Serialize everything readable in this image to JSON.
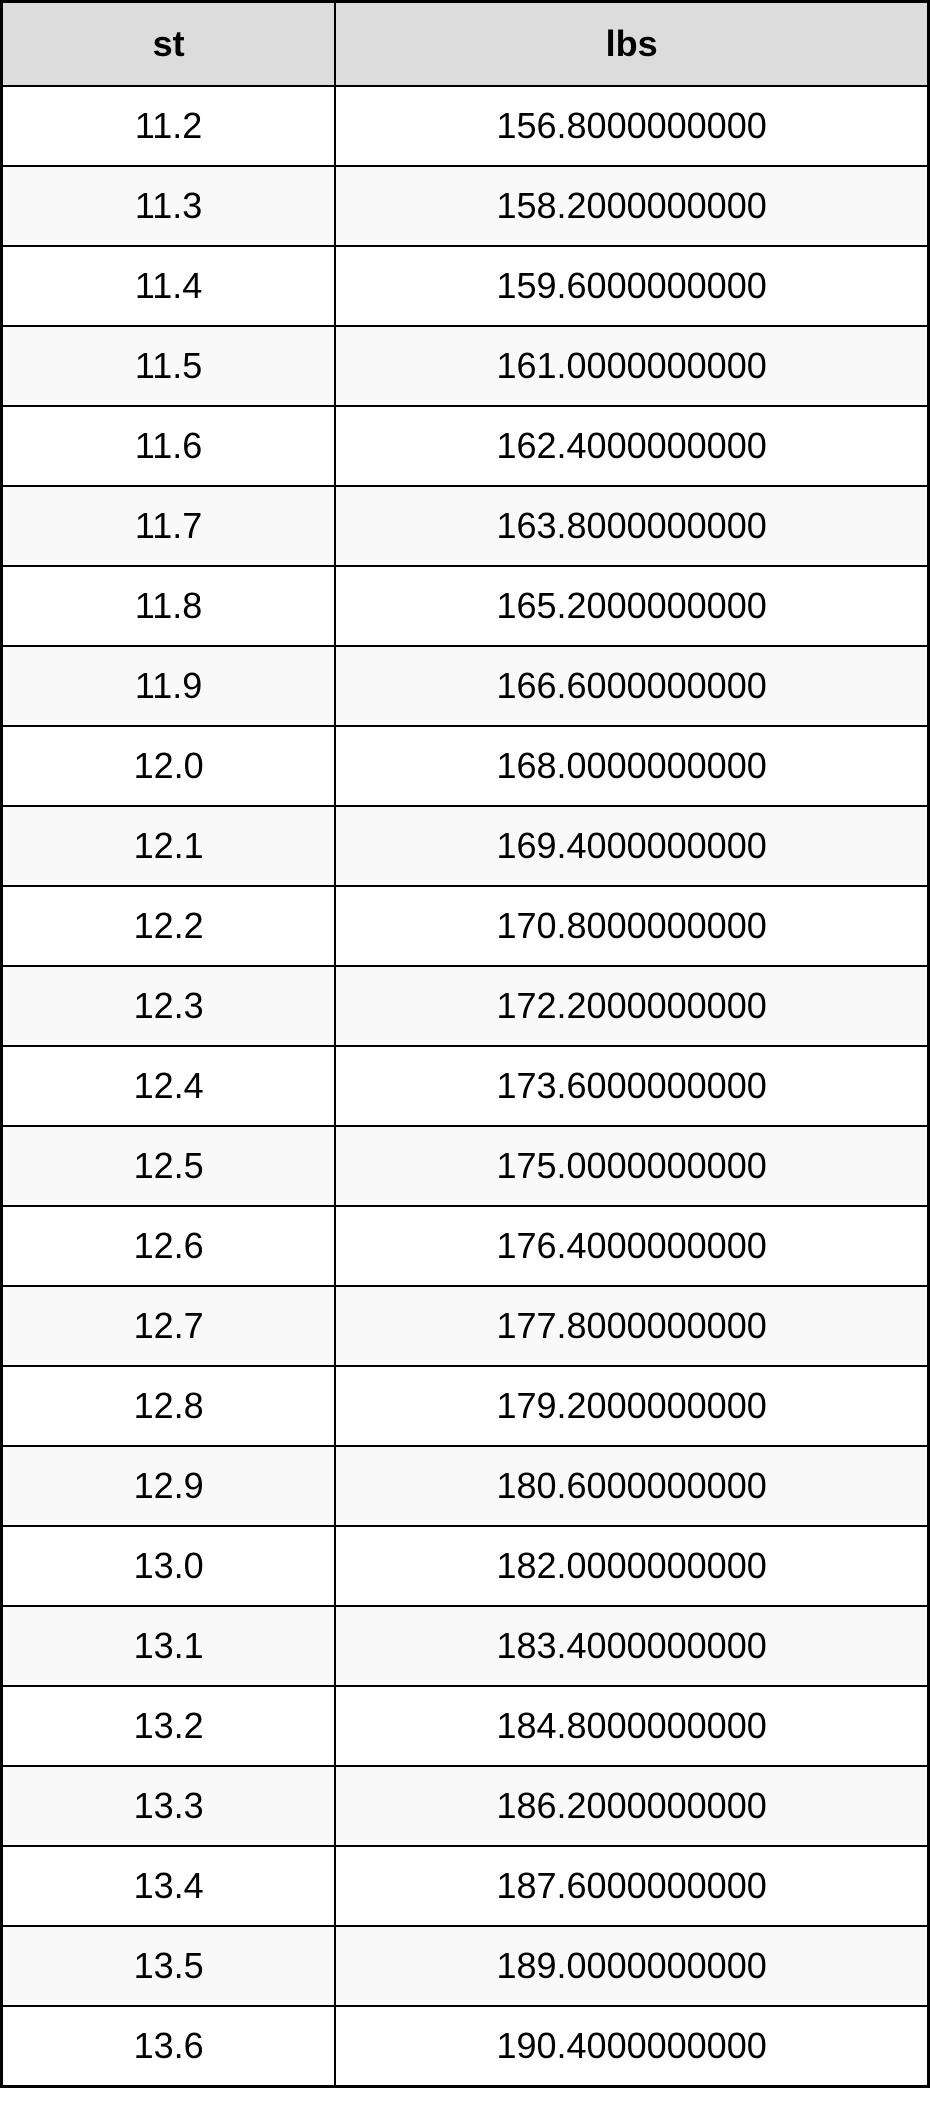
{
  "table": {
    "columns": [
      "st",
      "lbs"
    ],
    "header_bg": "#dcdcdc",
    "border_color": "#000000",
    "row_alt_bg": "#f9f9f9",
    "row_bg": "#ffffff",
    "font_size_header": 36,
    "font_size_cell": 36,
    "rows": [
      [
        "11.2",
        "156.8000000000"
      ],
      [
        "11.3",
        "158.2000000000"
      ],
      [
        "11.4",
        "159.6000000000"
      ],
      [
        "11.5",
        "161.0000000000"
      ],
      [
        "11.6",
        "162.4000000000"
      ],
      [
        "11.7",
        "163.8000000000"
      ],
      [
        "11.8",
        "165.2000000000"
      ],
      [
        "11.9",
        "166.6000000000"
      ],
      [
        "12.0",
        "168.0000000000"
      ],
      [
        "12.1",
        "169.4000000000"
      ],
      [
        "12.2",
        "170.8000000000"
      ],
      [
        "12.3",
        "172.2000000000"
      ],
      [
        "12.4",
        "173.6000000000"
      ],
      [
        "12.5",
        "175.0000000000"
      ],
      [
        "12.6",
        "176.4000000000"
      ],
      [
        "12.7",
        "177.8000000000"
      ],
      [
        "12.8",
        "179.2000000000"
      ],
      [
        "12.9",
        "180.6000000000"
      ],
      [
        "13.0",
        "182.0000000000"
      ],
      [
        "13.1",
        "183.4000000000"
      ],
      [
        "13.2",
        "184.8000000000"
      ],
      [
        "13.3",
        "186.2000000000"
      ],
      [
        "13.4",
        "187.6000000000"
      ],
      [
        "13.5",
        "189.0000000000"
      ],
      [
        "13.6",
        "190.4000000000"
      ]
    ]
  }
}
